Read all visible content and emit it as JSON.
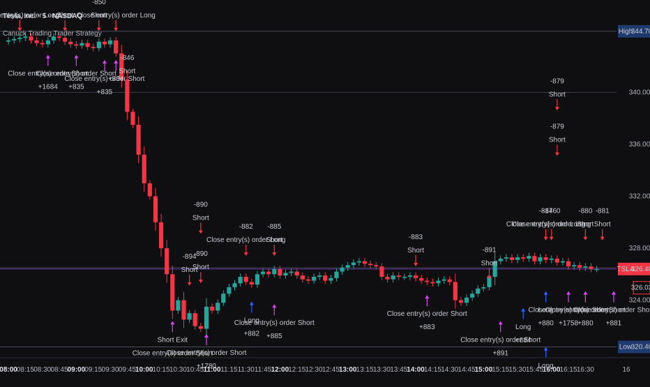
{
  "header": {
    "symbol": "Tesla, Inc. · 5 · NASDAQ",
    "strategy": "Canuck Trading Trader Strategy"
  },
  "colors": {
    "background": "#0f0f11",
    "bull": "#26a69a",
    "bear": "#f23645",
    "entry_long": "#2962ff",
    "entry_short": "#f23645",
    "exit_marker": "#e040fb",
    "high_low_badge": "#1e3a6e",
    "price_badge": "#f23645"
  },
  "chart_data": {
    "type": "candlestick",
    "ylim": [
      320,
      345.5
    ],
    "y_ticks": [
      "340.00",
      "336.00",
      "332.00",
      "328.00",
      "324.00"
    ],
    "x_ticks": [
      {
        "t": 0,
        "label": "08:00",
        "bold": true
      },
      {
        "t": 3,
        "label": "08:15"
      },
      {
        "t": 6,
        "label": "08:30"
      },
      {
        "t": 9,
        "label": "08:45"
      },
      {
        "t": 12,
        "label": "09:00",
        "bold": true
      },
      {
        "t": 15,
        "label": "09:15"
      },
      {
        "t": 18,
        "label": "09:30"
      },
      {
        "t": 21,
        "label": "09:45"
      },
      {
        "t": 24,
        "label": "10:00",
        "bold": true
      },
      {
        "t": 27,
        "label": "10:15"
      },
      {
        "t": 30,
        "label": "10:30"
      },
      {
        "t": 33,
        "label": "10:45"
      },
      {
        "t": 36,
        "label": "11:00",
        "bold": true
      },
      {
        "t": 39,
        "label": "11:15"
      },
      {
        "t": 42,
        "label": "11:30"
      },
      {
        "t": 45,
        "label": "11:45"
      },
      {
        "t": 48,
        "label": "12:00",
        "bold": true
      },
      {
        "t": 51,
        "label": "12:15"
      },
      {
        "t": 54,
        "label": "12:30"
      },
      {
        "t": 57,
        "label": "12:45"
      },
      {
        "t": 60,
        "label": "13:00",
        "bold": true
      },
      {
        "t": 63,
        "label": "13:15"
      },
      {
        "t": 66,
        "label": "13:30"
      },
      {
        "t": 69,
        "label": "13:45"
      },
      {
        "t": 72,
        "label": "14:00",
        "bold": true
      },
      {
        "t": 75,
        "label": "14:15"
      },
      {
        "t": 78,
        "label": "14:30"
      },
      {
        "t": 81,
        "label": "14:45"
      },
      {
        "t": 84,
        "label": "15:00",
        "bold": true
      },
      {
        "t": 87,
        "label": "15:15"
      },
      {
        "t": 90,
        "label": "15:30"
      },
      {
        "t": 93,
        "label": "15:45"
      },
      {
        "t": 96,
        "label": "16:00",
        "bold": true
      },
      {
        "t": 99,
        "label": "16:15"
      },
      {
        "t": 102,
        "label": "16:30"
      },
      {
        "t": 105,
        "label": "16"
      }
    ],
    "high": {
      "label": "High",
      "value": "344.70",
      "price": 344.7
    },
    "low": {
      "label": "Low",
      "value": "320.40",
      "price": 320.4
    },
    "last": {
      "label": "TSLA",
      "value": "326.40",
      "price": 326.4
    },
    "prev": {
      "value": "326.03",
      "price": 326.03
    },
    "hlines": [
      340.0,
      326.5
    ],
    "closes": [
      344.0,
      344.1,
      344.2,
      344.3,
      344.0,
      343.8,
      343.7,
      344.0,
      344.3,
      344.2,
      343.9,
      343.7,
      343.6,
      343.8,
      343.5,
      343.4,
      343.9,
      343.7,
      344.0,
      343.0,
      341.0,
      338.5,
      337.5,
      335.2,
      333.0,
      332.0,
      330.0,
      328.0,
      326.0,
      323.2,
      324.0,
      322.5,
      323.0,
      322.0,
      321.8,
      323.5,
      323.2,
      323.8,
      324.5,
      325.0,
      325.3,
      325.8,
      325.4,
      325.2,
      326.0,
      326.2,
      326.0,
      326.4,
      325.9,
      326.1,
      326.2,
      325.9,
      325.6,
      325.5,
      325.8,
      325.9,
      325.5,
      325.7,
      326.2,
      326.5,
      326.7,
      326.9,
      327.0,
      326.8,
      326.7,
      326.6,
      325.8,
      325.6,
      325.9,
      325.8,
      325.8,
      325.9,
      325.7,
      325.5,
      325.4,
      325.3,
      325.5,
      325.6,
      325.4,
      324.0,
      323.8,
      324.2,
      324.5,
      324.9,
      325.0,
      325.8,
      327.0,
      327.2,
      327.3,
      327.1,
      327.3,
      327.2,
      327.4,
      327.0,
      327.3,
      327.1,
      327.2,
      326.9,
      327.0,
      326.6,
      326.7,
      326.5,
      326.6,
      326.4,
      326.4
    ],
    "marks": [
      {
        "t": 2,
        "dir": "down",
        "at": 344.6,
        "labels": [
          "Close entry(s) order Long"
        ],
        "side": "above"
      },
      {
        "t": 10,
        "dir": "down",
        "at": 344.6,
        "labels": [
          "Short"
        ],
        "side": "above"
      },
      {
        "t": 16,
        "dir": "down",
        "at": 344.6,
        "labels": [
          "-850",
          "Short"
        ],
        "side": "above"
      },
      {
        "t": 19,
        "dir": "down",
        "at": 344.6,
        "labels": [
          "Close entry(s) order Long"
        ],
        "side": "above"
      },
      {
        "t": 7,
        "dir": "up",
        "at": 343.0,
        "labels": [
          "Close entry(s) order Short",
          "+1684"
        ],
        "side": "below"
      },
      {
        "t": 12,
        "dir": "up",
        "at": 343.0,
        "labels": [
          "Close entry(s) order Short",
          "+835"
        ],
        "side": "below"
      },
      {
        "t": 17,
        "dir": "up",
        "at": 342.6,
        "labels": [
          "Close entry(s) order Short",
          "+835"
        ],
        "side": "below"
      },
      {
        "t": 19,
        "dir": "up",
        "at": 342.6,
        "labels": [
          "+834"
        ],
        "side": "below"
      },
      {
        "t": 21,
        "dir": "down",
        "at": 340.3,
        "labels": [
          "-846",
          "Short"
        ],
        "side": "above"
      },
      {
        "t": 34,
        "dir": "down",
        "at": 329.0,
        "labels": [
          "-890",
          "Short"
        ],
        "side": "above"
      },
      {
        "t": 34,
        "dir": "down",
        "at": 325.2,
        "labels": [
          "-890",
          "Short"
        ],
        "side": "above"
      },
      {
        "t": 32,
        "dir": "down",
        "at": 325.0,
        "labels": [
          "-894",
          "Short"
        ],
        "side": "above"
      },
      {
        "t": 42,
        "dir": "down",
        "at": 327.3,
        "labels": [
          "-882",
          "Close entry(s) order Long"
        ],
        "side": "above"
      },
      {
        "t": 47,
        "dir": "down",
        "at": 327.3,
        "labels": [
          "-885",
          "Short"
        ],
        "side": "above"
      },
      {
        "t": 72,
        "dir": "down",
        "at": 326.5,
        "labels": [
          "-883",
          "Short"
        ],
        "side": "above"
      },
      {
        "t": 85,
        "dir": "down",
        "at": 325.5,
        "labels": [
          "-891",
          "Short"
        ],
        "side": "above"
      },
      {
        "t": 97,
        "dir": "down",
        "at": 338.5,
        "labels": [
          "-879",
          "Short"
        ],
        "side": "above"
      },
      {
        "t": 97,
        "dir": "down",
        "at": 335.0,
        "labels": [
          "-879",
          "Short"
        ],
        "side": "above"
      },
      {
        "t": 95,
        "dir": "down",
        "at": 328.5,
        "labels": [
          "-884",
          "Close entry(s) order Long"
        ],
        "side": "above"
      },
      {
        "t": 96,
        "dir": "down",
        "at": 328.5,
        "labels": [
          "-1760",
          "Close entry(s) order Long"
        ],
        "side": "above"
      },
      {
        "t": 102,
        "dir": "down",
        "at": 328.5,
        "labels": [
          "-880",
          "Short"
        ],
        "side": "above"
      },
      {
        "t": 105,
        "dir": "down",
        "at": 328.5,
        "labels": [
          "-881",
          "Short"
        ],
        "side": "above"
      },
      {
        "t": 29,
        "dir": "up",
        "at": 322.5,
        "labels": [
          "Short Exit",
          "Close entry(s) order Short"
        ],
        "side": "below"
      },
      {
        "t": 35,
        "dir": "up",
        "at": 321.5,
        "labels": [
          "Close entry(s) order Short",
          "+1780"
        ],
        "side": "below"
      },
      {
        "t": 43,
        "dir": "up",
        "at": 324.0,
        "labels": [
          "Long",
          "+882"
        ],
        "side": "below"
      },
      {
        "t": 47,
        "dir": "up",
        "at": 323.8,
        "labels": [
          "Close entry(s) order Short",
          "+885"
        ],
        "side": "below"
      },
      {
        "t": 74,
        "dir": "up",
        "at": 324.5,
        "labels": [
          "Close entry(s) order Short",
          "+883"
        ],
        "side": "below"
      },
      {
        "t": 87,
        "dir": "up",
        "at": 322.5,
        "labels": [
          "Close entry(s) order Short",
          "+891"
        ],
        "side": "below"
      },
      {
        "t": 91,
        "dir": "up",
        "at": 323.5,
        "labels": [
          "Long",
          "+884"
        ],
        "side": "below"
      },
      {
        "t": 95,
        "dir": "up",
        "at": 324.8,
        "labels": [
          "Long",
          "+880"
        ],
        "side": "below"
      },
      {
        "t": 99,
        "dir": "up",
        "at": 324.8,
        "labels": [
          "Close entry(s) order Short",
          "+1758"
        ],
        "side": "below"
      },
      {
        "t": 102,
        "dir": "up",
        "at": 324.8,
        "labels": [
          "Close entry(s) order Short",
          "+880"
        ],
        "side": "below"
      },
      {
        "t": 107,
        "dir": "up",
        "at": 324.8,
        "labels": [
          "Close entry(s) order Short",
          "+881"
        ],
        "side": "below"
      },
      {
        "t": 95,
        "dir": "up",
        "at": 320.5,
        "labels": [
          "Long"
        ],
        "side": "below"
      }
    ]
  }
}
